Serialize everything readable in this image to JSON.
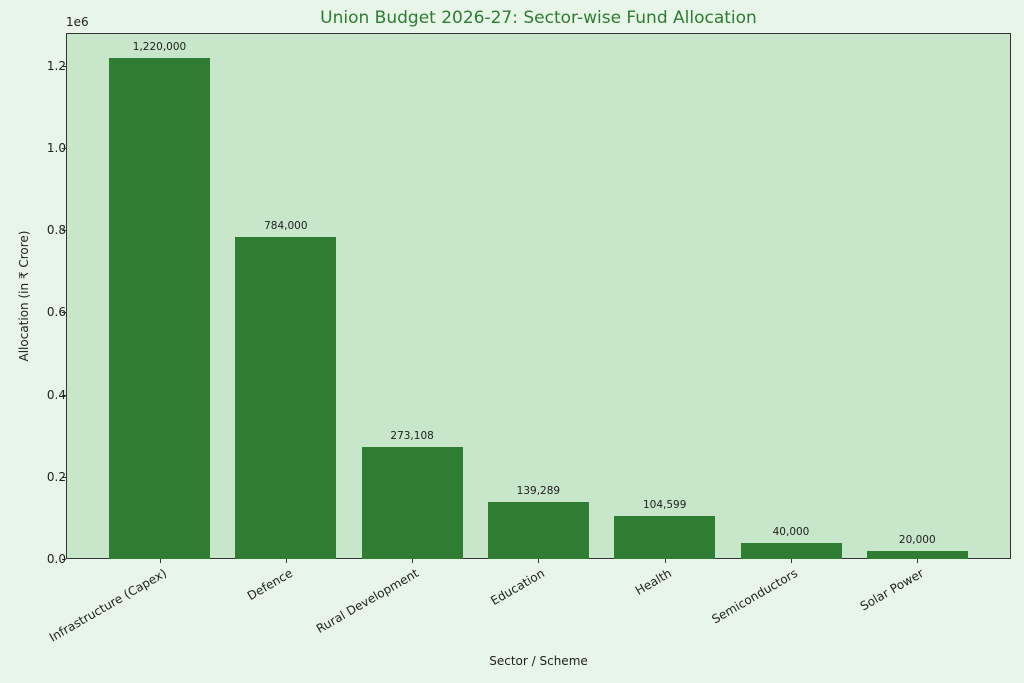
{
  "chart_data": {
    "type": "bar",
    "title": "Union Budget 2026-27: Sector-wise Fund Allocation",
    "xlabel": "Sector / Scheme",
    "ylabel": "Allocation (in ₹ Crore)",
    "y_offset_label": "1e6",
    "ylim": [
      0,
      1281000
    ],
    "yticks": [
      "0.0",
      "0.2",
      "0.4",
      "0.6",
      "0.8",
      "1.0",
      "1.2"
    ],
    "grid": false,
    "categories": [
      "Infrastructure (Capex)",
      "Defence",
      "Rural Development",
      "Education",
      "Health",
      "Semiconductors",
      "Solar Power"
    ],
    "values": [
      1220000,
      784000,
      273108,
      139289,
      104599,
      40000,
      20000
    ],
    "value_labels": [
      "1,220,000",
      "784,000",
      "273,108",
      "139,289",
      "104,599",
      "40,000",
      "20,000"
    ],
    "colors": {
      "bar": "#2e7d32",
      "plot_bg": "#c8e6c9",
      "figure_bg": "#e8f5e9",
      "title": "#2e7d32"
    }
  }
}
